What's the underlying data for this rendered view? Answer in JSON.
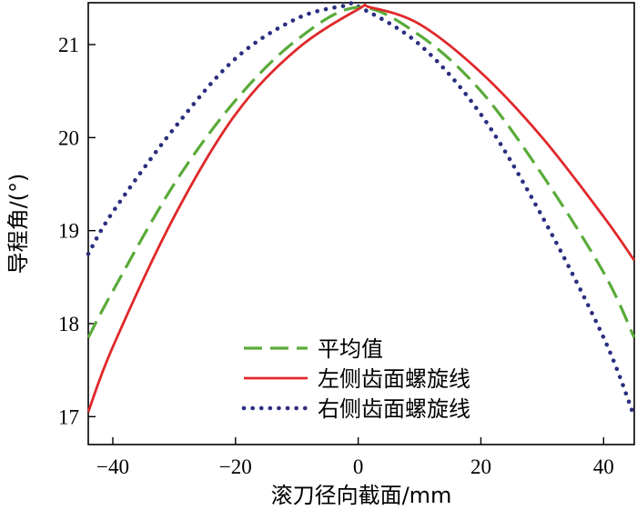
{
  "chart_data": {
    "type": "line",
    "title": "",
    "xlabel": "滚刀径向截面/mm",
    "ylabel": "导程角/(°)",
    "xlim": [
      -44,
      45
    ],
    "ylim": [
      16.7,
      21.45
    ],
    "xticks": [
      -40,
      -20,
      0,
      20,
      40
    ],
    "xtick_labels": [
      "−40",
      "−20",
      "0",
      "20",
      "40"
    ],
    "yticks": [
      17,
      18,
      19,
      20,
      21
    ],
    "ytick_labels": [
      "17",
      "18",
      "19",
      "20",
      "21"
    ],
    "grid": false,
    "legend_position": "bottom-center",
    "series": [
      {
        "name": "平均值",
        "style": "dashed",
        "color": "#5aab3a",
        "x": [
          -44,
          -40,
          -30,
          -20,
          -10,
          0,
          10,
          20,
          30,
          40,
          45
        ],
        "y": [
          17.85,
          18.35,
          19.5,
          20.4,
          21.05,
          21.4,
          21.1,
          20.5,
          19.6,
          18.55,
          17.85
        ]
      },
      {
        "name": "左侧齿面螺旋线",
        "style": "solid",
        "color": "#e0282a",
        "x": [
          -44,
          -40,
          -30,
          -20,
          -10,
          0,
          2,
          10,
          20,
          30,
          40,
          45
        ],
        "y": [
          17.05,
          17.75,
          19.15,
          20.25,
          20.95,
          21.38,
          21.4,
          21.22,
          20.7,
          20.0,
          19.15,
          18.68
        ]
      },
      {
        "name": "右侧齿面螺旋线",
        "style": "dotted",
        "color": "#2b2e7f",
        "x": [
          -44,
          -40,
          -30,
          -20,
          -10,
          -2,
          0,
          10,
          20,
          30,
          40,
          45
        ],
        "y": [
          18.75,
          19.2,
          20.1,
          20.85,
          21.28,
          21.42,
          21.41,
          21.0,
          20.25,
          19.15,
          17.85,
          17.0
        ]
      }
    ]
  }
}
